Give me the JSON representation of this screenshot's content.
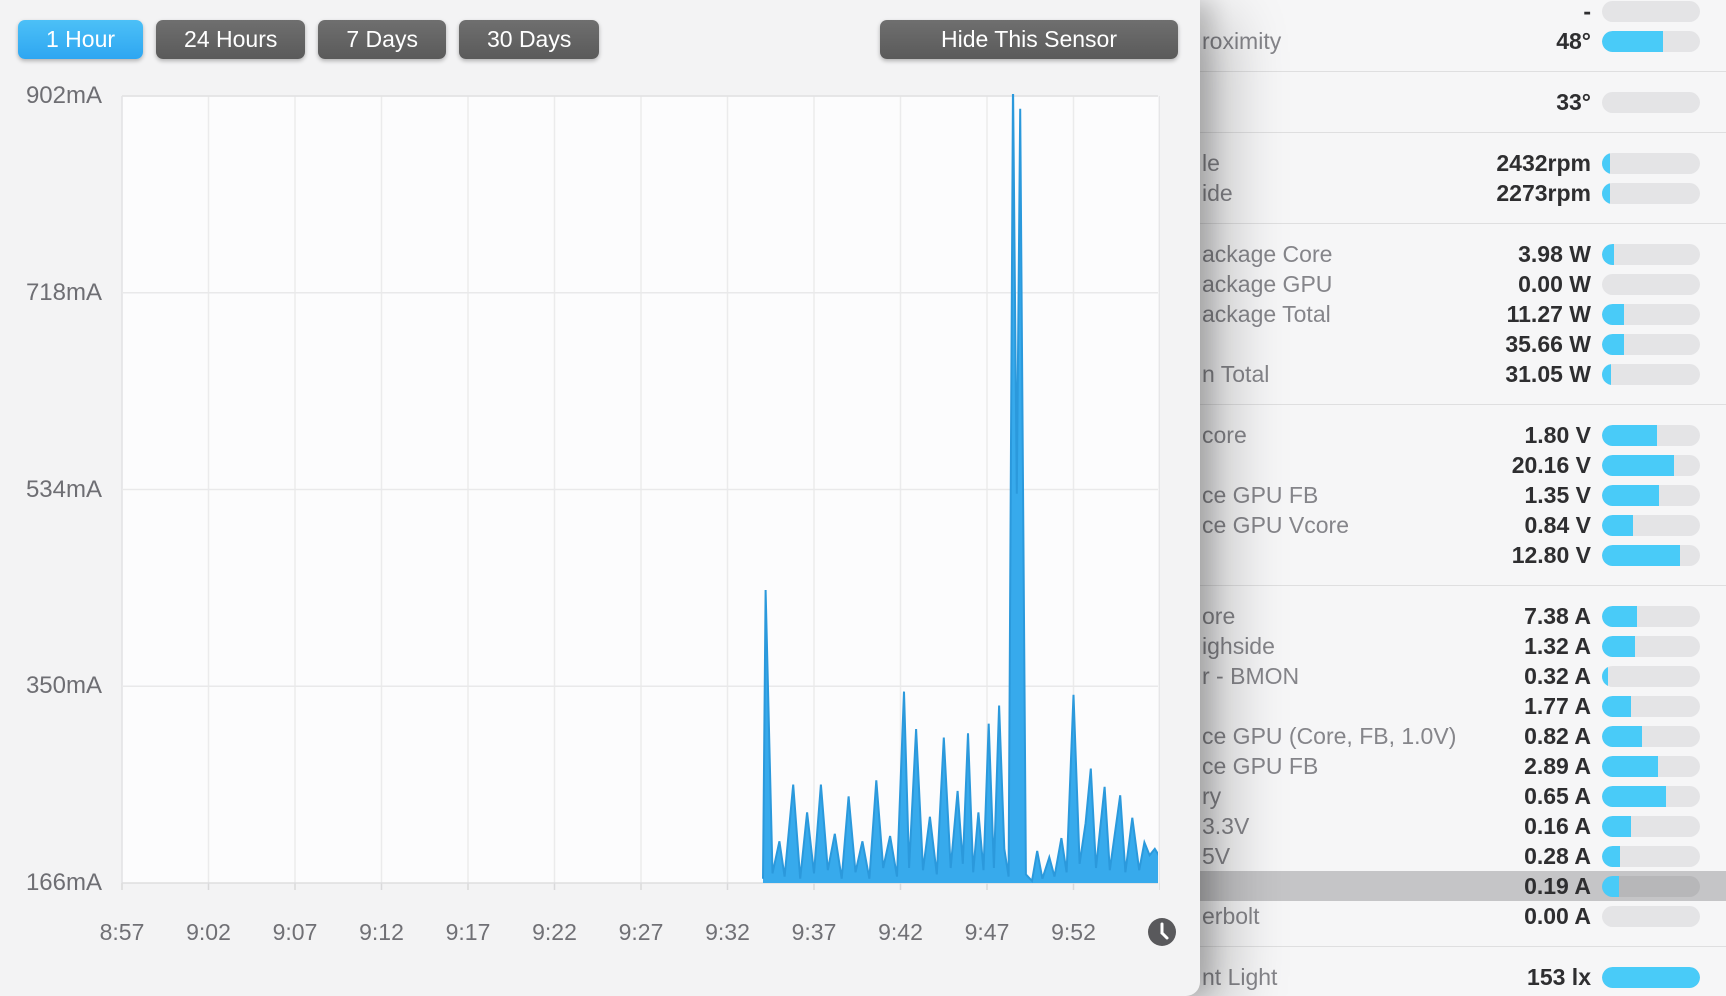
{
  "toolbar": {
    "ranges": [
      {
        "label": "1 Hour",
        "selected": true
      },
      {
        "label": "24 Hours",
        "selected": false
      },
      {
        "label": "7 Days",
        "selected": false
      },
      {
        "label": "30 Days",
        "selected": false
      }
    ],
    "hide_button_label": "Hide This Sensor"
  },
  "chart_data": {
    "type": "area",
    "unit": "mA",
    "y_ticks": [
      "902mA",
      "718mA",
      "534mA",
      "350mA",
      "166mA"
    ],
    "y_tick_values": [
      902,
      718,
      534,
      350,
      166
    ],
    "x_ticks": [
      "8:57",
      "9:02",
      "9:07",
      "9:12",
      "9:17",
      "9:22",
      "9:27",
      "9:32",
      "9:37",
      "9:42",
      "9:47",
      "9:52"
    ],
    "x_minutes_span": 60,
    "minutes_per_gridline": 5,
    "ylim": [
      166,
      904
    ],
    "grid": true,
    "area_color": "#37aaec",
    "line_color": "#2b99dc",
    "series_points_t_min_vs_mA": [
      [
        37.05,
        170
      ],
      [
        37.2,
        440
      ],
      [
        37.6,
        175
      ],
      [
        38.0,
        205
      ],
      [
        38.3,
        172
      ],
      [
        38.8,
        258
      ],
      [
        39.2,
        170
      ],
      [
        39.6,
        232
      ],
      [
        40.0,
        175
      ],
      [
        40.4,
        258
      ],
      [
        40.8,
        178
      ],
      [
        41.2,
        212
      ],
      [
        41.6,
        170
      ],
      [
        42.0,
        247
      ],
      [
        42.4,
        176
      ],
      [
        42.8,
        205
      ],
      [
        43.2,
        170
      ],
      [
        43.6,
        262
      ],
      [
        44.0,
        180
      ],
      [
        44.4,
        210
      ],
      [
        44.8,
        172
      ],
      [
        45.2,
        345
      ],
      [
        45.5,
        180
      ],
      [
        45.9,
        310
      ],
      [
        46.3,
        178
      ],
      [
        46.7,
        228
      ],
      [
        47.1,
        174
      ],
      [
        47.5,
        302
      ],
      [
        47.9,
        180
      ],
      [
        48.3,
        252
      ],
      [
        48.6,
        184
      ],
      [
        48.9,
        306
      ],
      [
        49.2,
        176
      ],
      [
        49.5,
        232
      ],
      [
        49.8,
        178
      ],
      [
        50.1,
        315
      ],
      [
        50.4,
        180
      ],
      [
        50.7,
        332
      ],
      [
        51.0,
        198
      ],
      [
        51.25,
        172
      ],
      [
        51.5,
        915
      ],
      [
        51.72,
        530
      ],
      [
        51.92,
        890
      ],
      [
        52.25,
        174
      ],
      [
        52.6,
        168
      ],
      [
        52.9,
        196
      ],
      [
        53.2,
        170
      ],
      [
        53.6,
        190
      ],
      [
        53.9,
        172
      ],
      [
        54.3,
        208
      ],
      [
        54.6,
        176
      ],
      [
        55.0,
        342
      ],
      [
        55.35,
        184
      ],
      [
        55.7,
        222
      ],
      [
        56.0,
        273
      ],
      [
        56.3,
        180
      ],
      [
        56.8,
        256
      ],
      [
        57.1,
        178
      ],
      [
        57.7,
        248
      ],
      [
        58.0,
        176
      ],
      [
        58.4,
        227
      ],
      [
        58.8,
        178
      ],
      [
        59.1,
        204
      ],
      [
        59.4,
        192
      ],
      [
        59.7,
        198
      ],
      [
        60.0,
        190
      ]
    ]
  },
  "sensor_list": {
    "accent_color": "#49cbf8",
    "highlight_color": "#c5c5c7",
    "groups": [
      {
        "rows": [
          {
            "label": "",
            "value": "-",
            "fill_pct": 0
          },
          {
            "label": "roximity",
            "value": "48°",
            "fill_pct": 62
          }
        ]
      },
      {
        "rows": [
          {
            "label": "",
            "value": "33°",
            "fill_pct": 0
          }
        ]
      },
      {
        "rows": [
          {
            "label": "le",
            "value": "2432rpm",
            "fill_pct": 8
          },
          {
            "label": "ide",
            "value": "2273rpm",
            "fill_pct": 8
          }
        ]
      },
      {
        "rows": [
          {
            "label": "ackage Core",
            "value": "3.98 W",
            "fill_pct": 12
          },
          {
            "label": "ackage GPU",
            "value": "0.00 W",
            "fill_pct": 0
          },
          {
            "label": "ackage Total",
            "value": "11.27 W",
            "fill_pct": 22
          },
          {
            "label": "",
            "value": "35.66 W",
            "fill_pct": 22
          },
          {
            "label": "n Total",
            "value": "31.05 W",
            "fill_pct": 9
          }
        ]
      },
      {
        "rows": [
          {
            "label": "core",
            "value": "1.80 V",
            "fill_pct": 56
          },
          {
            "label": "",
            "value": "20.16 V",
            "fill_pct": 73
          },
          {
            "label": "ce GPU FB",
            "value": "1.35 V",
            "fill_pct": 58
          },
          {
            "label": "ce GPU Vcore",
            "value": "0.84 V",
            "fill_pct": 32
          },
          {
            "label": "",
            "value": "12.80 V",
            "fill_pct": 80
          }
        ]
      },
      {
        "rows": [
          {
            "label": "ore",
            "value": "7.38 A",
            "fill_pct": 36
          },
          {
            "label": "ighside",
            "value": "1.32 A",
            "fill_pct": 34
          },
          {
            "label": "r - BMON",
            "value": "0.32 A",
            "fill_pct": 6
          },
          {
            "label": "",
            "value": "1.77 A",
            "fill_pct": 30
          },
          {
            "label": "ce GPU (Core, FB, 1.0V)",
            "value": "0.82 A",
            "fill_pct": 41
          },
          {
            "label": "ce GPU FB",
            "value": "2.89 A",
            "fill_pct": 57
          },
          {
            "label": "ry",
            "value": "0.65 A",
            "fill_pct": 65
          },
          {
            "label": "3.3V",
            "value": "0.16 A",
            "fill_pct": 30
          },
          {
            "label": "5V",
            "value": "0.28 A",
            "fill_pct": 18
          },
          {
            "label": "",
            "value": "0.19 A",
            "fill_pct": 17,
            "highlighted": true
          },
          {
            "label": "erbolt",
            "value": "0.00 A",
            "fill_pct": 0
          }
        ]
      },
      {
        "rows": [
          {
            "label": "nt Light",
            "value": "153 lx",
            "fill_pct": 100
          }
        ]
      }
    ]
  }
}
